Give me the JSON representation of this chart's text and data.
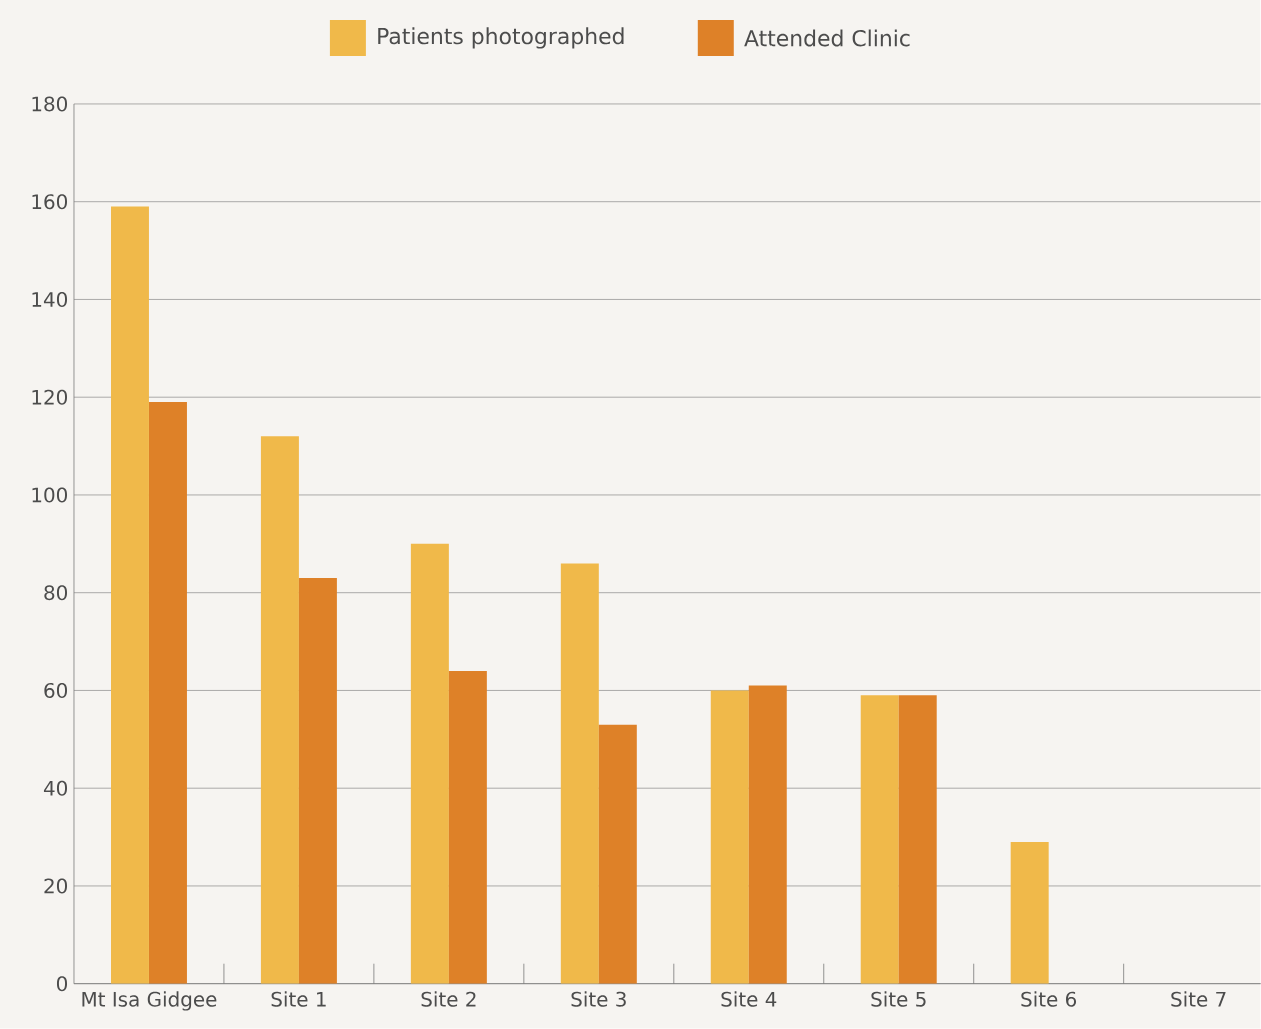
{
  "chart_data": {
    "type": "bar",
    "categories": [
      "Mt Isa Gidgee",
      "Site 1",
      "Site 2",
      "Site 3",
      "Site 4",
      "Site 5",
      "Site 6",
      "Site 7"
    ],
    "series": [
      {
        "name": "Patients photographed",
        "color": "#f0b94a",
        "values": [
          159,
          112,
          90,
          86,
          60,
          59,
          29,
          0
        ]
      },
      {
        "name": "Attended Clinic",
        "color": "#de8128",
        "values": [
          119,
          83,
          64,
          53,
          61,
          59,
          0,
          0
        ]
      }
    ],
    "ylim": [
      0,
      180
    ],
    "yticks": [
      0,
      20,
      40,
      60,
      80,
      100,
      120,
      140,
      160,
      180
    ],
    "grid": "y",
    "legend": "top"
  }
}
